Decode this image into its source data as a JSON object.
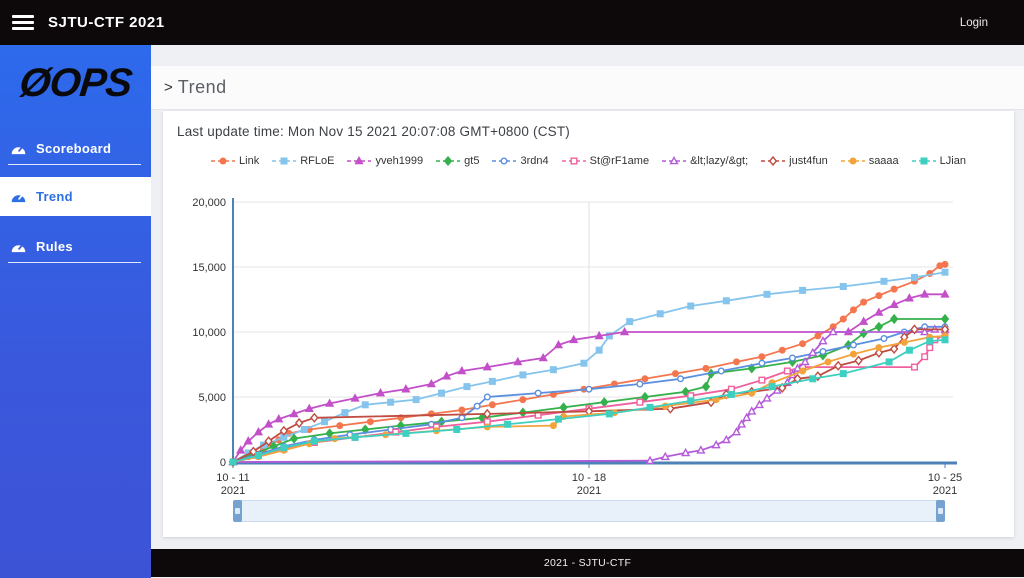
{
  "topbar": {
    "title": "SJTU-CTF 2021",
    "login_label": "Login"
  },
  "sidebar": {
    "logo": "ØOPS",
    "items": [
      {
        "label": "Scoreboard",
        "active": false
      },
      {
        "label": "Trend",
        "active": true
      },
      {
        "label": "Rules",
        "active": false
      }
    ]
  },
  "main": {
    "breadcrumb_symbol": ">",
    "page_title": "Trend",
    "last_update": "Last update time: Mon Nov 15 2021 20:07:08 GMT+0800 (CST)"
  },
  "footer": {
    "text": "2021 - SJTU-CTF"
  },
  "colors": {
    "topbar_bg": "#0d090a",
    "sidebar_blue_top": "#2d6aec",
    "sidebar_blue_bottom": "#3d53d6",
    "active_item_text": "#2f6fe4",
    "axis_blue": "#4d82b8",
    "gridline": "#e4e4e4",
    "scrollbar_track": "#e8f1fa",
    "scrollbar_handle": "#76a2cf"
  },
  "chart_data": {
    "type": "line",
    "title": "",
    "xlabel": "",
    "ylabel": "",
    "ylim": [
      0,
      20000
    ],
    "xlim_days": [
      0,
      14
    ],
    "grid": true,
    "legend_position": "top",
    "y_ticks": [
      {
        "value": 0,
        "label": "0"
      },
      {
        "value": 5000,
        "label": "5,000"
      },
      {
        "value": 10000,
        "label": "10,000"
      },
      {
        "value": 15000,
        "label": "15,000"
      },
      {
        "value": 20000,
        "label": "20,000"
      }
    ],
    "x_ticks": [
      {
        "day": 0,
        "line1": "10 - 11",
        "line2": "2021"
      },
      {
        "day": 7,
        "line1": "10 - 18",
        "line2": "2021"
      },
      {
        "day": 14,
        "line1": "10 - 25",
        "line2": "2021"
      }
    ],
    "series": [
      {
        "name": "Link",
        "color": "#f4764f",
        "marker": "circle",
        "filled": true,
        "points": [
          [
            0,
            0
          ],
          [
            0.3,
            400
          ],
          [
            0.6,
            1000
          ],
          [
            0.9,
            1700
          ],
          [
            1.1,
            2200
          ],
          [
            1.5,
            2500
          ],
          [
            2.1,
            2800
          ],
          [
            2.7,
            3100
          ],
          [
            3.3,
            3400
          ],
          [
            3.9,
            3700
          ],
          [
            4.5,
            4000
          ],
          [
            5.1,
            4400
          ],
          [
            5.7,
            4800
          ],
          [
            6.3,
            5200
          ],
          [
            6.9,
            5600
          ],
          [
            7.5,
            6000
          ],
          [
            8.1,
            6400
          ],
          [
            8.7,
            6800
          ],
          [
            9.3,
            7200
          ],
          [
            9.9,
            7700
          ],
          [
            10.4,
            8100
          ],
          [
            10.8,
            8600
          ],
          [
            11.2,
            9100
          ],
          [
            11.5,
            9700
          ],
          [
            11.8,
            10400
          ],
          [
            12.0,
            11000
          ],
          [
            12.2,
            11700
          ],
          [
            12.4,
            12300
          ],
          [
            12.7,
            12800
          ],
          [
            13.0,
            13300
          ],
          [
            13.4,
            13900
          ],
          [
            13.7,
            14500
          ],
          [
            13.9,
            15100
          ],
          [
            14,
            15200
          ]
        ]
      },
      {
        "name": "RFLoE",
        "color": "#85c4ec",
        "marker": "square",
        "filled": true,
        "points": [
          [
            0,
            0
          ],
          [
            0.3,
            700
          ],
          [
            0.6,
            1300
          ],
          [
            1.0,
            1900
          ],
          [
            1.4,
            2500
          ],
          [
            1.8,
            3100
          ],
          [
            2.2,
            3800
          ],
          [
            2.6,
            4400
          ],
          [
            3.1,
            4600
          ],
          [
            3.6,
            4800
          ],
          [
            4.1,
            5300
          ],
          [
            4.6,
            5800
          ],
          [
            5.1,
            6200
          ],
          [
            5.7,
            6700
          ],
          [
            6.3,
            7100
          ],
          [
            6.9,
            7600
          ],
          [
            7.2,
            8600
          ],
          [
            7.4,
            9700
          ],
          [
            7.8,
            10800
          ],
          [
            8.4,
            11400
          ],
          [
            9.0,
            12000
          ],
          [
            9.7,
            12400
          ],
          [
            10.5,
            12900
          ],
          [
            11.2,
            13200
          ],
          [
            12.0,
            13500
          ],
          [
            12.8,
            13900
          ],
          [
            13.4,
            14200
          ],
          [
            14,
            14600
          ]
        ]
      },
      {
        "name": "yveh1999",
        "color": "#c34fc9",
        "marker": "triangle",
        "filled": true,
        "points": [
          [
            0,
            0
          ],
          [
            0.15,
            900
          ],
          [
            0.3,
            1600
          ],
          [
            0.5,
            2300
          ],
          [
            0.7,
            2900
          ],
          [
            0.9,
            3300
          ],
          [
            1.2,
            3700
          ],
          [
            1.5,
            4100
          ],
          [
            1.9,
            4500
          ],
          [
            2.4,
            4900
          ],
          [
            2.9,
            5300
          ],
          [
            3.4,
            5600
          ],
          [
            3.9,
            6000
          ],
          [
            4.2,
            6600
          ],
          [
            4.5,
            7000
          ],
          [
            5.0,
            7300
          ],
          [
            5.6,
            7700
          ],
          [
            6.1,
            8000
          ],
          [
            6.4,
            9000
          ],
          [
            6.7,
            9400
          ],
          [
            7.2,
            9700
          ],
          [
            7.7,
            10000
          ],
          [
            12.1,
            10000
          ],
          [
            12.4,
            10800
          ],
          [
            12.7,
            11500
          ],
          [
            13.0,
            12100
          ],
          [
            13.3,
            12600
          ],
          [
            13.6,
            12900
          ],
          [
            14,
            12900
          ]
        ]
      },
      {
        "name": "gt5",
        "color": "#35b14b",
        "marker": "diamond",
        "filled": true,
        "points": [
          [
            0,
            0
          ],
          [
            0.4,
            600
          ],
          [
            0.8,
            1200
          ],
          [
            1.2,
            1800
          ],
          [
            1.9,
            2200
          ],
          [
            2.6,
            2500
          ],
          [
            3.3,
            2800
          ],
          [
            4.1,
            3100
          ],
          [
            4.9,
            3400
          ],
          [
            5.7,
            3800
          ],
          [
            6.5,
            4200
          ],
          [
            7.3,
            4600
          ],
          [
            8.1,
            5000
          ],
          [
            8.9,
            5400
          ],
          [
            9.3,
            5800
          ],
          [
            9.4,
            6800
          ],
          [
            10.2,
            7200
          ],
          [
            11.0,
            7700
          ],
          [
            11.6,
            8200
          ],
          [
            12.1,
            9000
          ],
          [
            12.4,
            9900
          ],
          [
            12.7,
            10400
          ],
          [
            13.0,
            11000
          ],
          [
            14,
            11000
          ]
        ]
      },
      {
        "name": "3rdn4",
        "color": "#5b8fe0",
        "marker": "circle",
        "filled": false,
        "points": [
          [
            0,
            0
          ],
          [
            0.5,
            600
          ],
          [
            1.0,
            1200
          ],
          [
            1.6,
            1700
          ],
          [
            2.3,
            2100
          ],
          [
            3.1,
            2500
          ],
          [
            3.9,
            2900
          ],
          [
            4.5,
            3400
          ],
          [
            4.8,
            4300
          ],
          [
            5.0,
            5000
          ],
          [
            6.0,
            5300
          ],
          [
            7.0,
            5600
          ],
          [
            8.0,
            6000
          ],
          [
            8.8,
            6400
          ],
          [
            9.6,
            7000
          ],
          [
            10.4,
            7600
          ],
          [
            11.0,
            8000
          ],
          [
            11.6,
            8500
          ],
          [
            12.2,
            9000
          ],
          [
            12.8,
            9500
          ],
          [
            13.2,
            10000
          ],
          [
            13.6,
            10400
          ],
          [
            14,
            10400
          ]
        ]
      },
      {
        "name": "St@rF1ame",
        "color": "#f0609e",
        "marker": "square",
        "filled": false,
        "points": [
          [
            0,
            0
          ],
          [
            0.5,
            500
          ],
          [
            1.0,
            1000
          ],
          [
            1.6,
            1500
          ],
          [
            2.4,
            1900
          ],
          [
            3.2,
            2300
          ],
          [
            4.0,
            2700
          ],
          [
            5.0,
            3100
          ],
          [
            6.0,
            3600
          ],
          [
            7.0,
            4100
          ],
          [
            8.0,
            4600
          ],
          [
            9.0,
            5100
          ],
          [
            9.8,
            5600
          ],
          [
            10.4,
            6300
          ],
          [
            10.9,
            7000
          ],
          [
            11.2,
            7300
          ],
          [
            13.4,
            7300
          ],
          [
            13.6,
            8100
          ],
          [
            13.7,
            8800
          ],
          [
            13.8,
            9400
          ],
          [
            14,
            9800
          ]
        ]
      },
      {
        "name": "&lt;lazy/&gt;",
        "color": "#b45bd9",
        "marker": "triangle",
        "filled": false,
        "points": [
          [
            0,
            0
          ],
          [
            8.2,
            100
          ],
          [
            8.5,
            400
          ],
          [
            8.9,
            700
          ],
          [
            9.2,
            900
          ],
          [
            9.5,
            1300
          ],
          [
            9.7,
            1700
          ],
          [
            9.9,
            2300
          ],
          [
            10.0,
            2900
          ],
          [
            10.1,
            3400
          ],
          [
            10.2,
            3900
          ],
          [
            10.35,
            4400
          ],
          [
            10.5,
            4900
          ],
          [
            10.7,
            5500
          ],
          [
            10.9,
            6100
          ],
          [
            11.0,
            6700
          ],
          [
            11.1,
            7200
          ],
          [
            11.25,
            7700
          ],
          [
            11.4,
            8400
          ],
          [
            11.6,
            9300
          ],
          [
            11.8,
            10000
          ],
          [
            13.6,
            10000
          ],
          [
            13.8,
            10200
          ],
          [
            14,
            10200
          ]
        ]
      },
      {
        "name": "just4fun",
        "color": "#bf4b41",
        "marker": "diamond",
        "filled": false,
        "points": [
          [
            0,
            0
          ],
          [
            0.4,
            800
          ],
          [
            0.7,
            1600
          ],
          [
            1.0,
            2400
          ],
          [
            1.3,
            3000
          ],
          [
            1.6,
            3400
          ],
          [
            5.0,
            3700
          ],
          [
            7.0,
            3900
          ],
          [
            8.6,
            4100
          ],
          [
            9.4,
            4600
          ],
          [
            9.7,
            5200
          ],
          [
            10.2,
            5400
          ],
          [
            10.8,
            5700
          ],
          [
            11.1,
            6400
          ],
          [
            11.5,
            6600
          ],
          [
            11.9,
            7400
          ],
          [
            12.3,
            7800
          ],
          [
            12.7,
            8400
          ],
          [
            13.0,
            8700
          ],
          [
            13.2,
            9600
          ],
          [
            13.4,
            10200
          ],
          [
            14,
            10200
          ]
        ]
      },
      {
        "name": "saaaa",
        "color": "#f2a33c",
        "marker": "circle",
        "filled": true,
        "points": [
          [
            0,
            0
          ],
          [
            0.5,
            400
          ],
          [
            1.0,
            900
          ],
          [
            1.5,
            1400
          ],
          [
            2.0,
            1800
          ],
          [
            3.0,
            2100
          ],
          [
            4.0,
            2400
          ],
          [
            5.0,
            2700
          ],
          [
            6.3,
            2800
          ],
          [
            6.5,
            3500
          ],
          [
            7.5,
            3800
          ],
          [
            8.5,
            4300
          ],
          [
            9.5,
            4800
          ],
          [
            10.2,
            5300
          ],
          [
            10.6,
            6100
          ],
          [
            11.2,
            7000
          ],
          [
            11.7,
            7700
          ],
          [
            12.2,
            8300
          ],
          [
            12.7,
            8800
          ],
          [
            13.2,
            9200
          ],
          [
            13.7,
            9600
          ],
          [
            14,
            9700
          ]
        ]
      },
      {
        "name": "LJian",
        "color": "#3ecfc0",
        "marker": "square",
        "filled": true,
        "points": [
          [
            0,
            0
          ],
          [
            0.5,
            500
          ],
          [
            1.0,
            1100
          ],
          [
            1.6,
            1600
          ],
          [
            2.4,
            1900
          ],
          [
            3.4,
            2200
          ],
          [
            4.4,
            2500
          ],
          [
            5.4,
            2900
          ],
          [
            6.4,
            3300
          ],
          [
            7.4,
            3700
          ],
          [
            8.2,
            4200
          ],
          [
            9.0,
            4700
          ],
          [
            9.8,
            5200
          ],
          [
            10.6,
            5800
          ],
          [
            11.4,
            6400
          ],
          [
            12.0,
            6800
          ],
          [
            12.9,
            7700
          ],
          [
            13.3,
            8600
          ],
          [
            13.7,
            9300
          ],
          [
            14,
            9400
          ]
        ]
      }
    ]
  }
}
